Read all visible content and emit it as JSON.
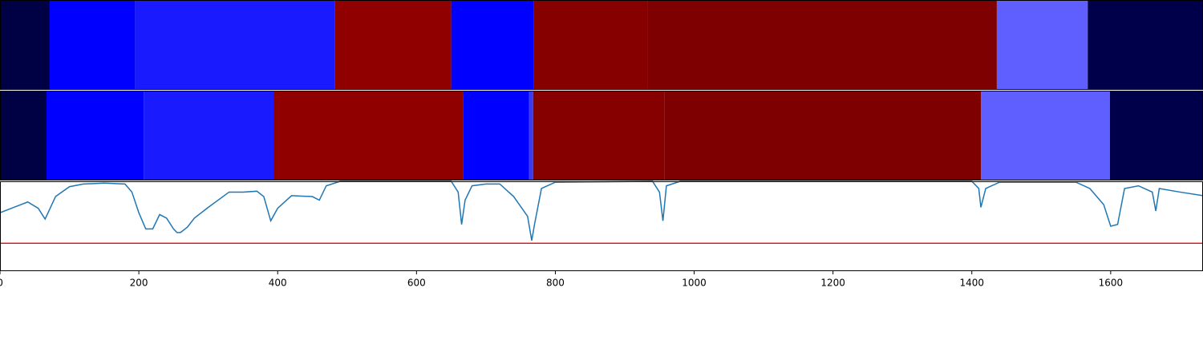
{
  "chart_data": [
    {
      "type": "segments",
      "xlim": [
        0,
        1733
      ],
      "segments": [
        {
          "start": 0,
          "end": 71.6,
          "color": "#000045"
        },
        {
          "start": 71.6,
          "end": 195,
          "color": "#0000ff"
        },
        {
          "start": 195,
          "end": 482,
          "color": "#1a1aff"
        },
        {
          "start": 482,
          "end": 650,
          "color": "#910000"
        },
        {
          "start": 650,
          "end": 769,
          "color": "#0000ff"
        },
        {
          "start": 769,
          "end": 933,
          "color": "#870000"
        },
        {
          "start": 933,
          "end": 1436,
          "color": "#7f0000"
        },
        {
          "start": 1436,
          "end": 1567,
          "color": "#5f5fff"
        },
        {
          "start": 1567,
          "end": 1733,
          "color": "#00004a"
        }
      ]
    },
    {
      "type": "segments",
      "xlim": [
        0,
        1733
      ],
      "segments": [
        {
          "start": 0,
          "end": 67,
          "color": "#000045"
        },
        {
          "start": 67,
          "end": 207,
          "color": "#0000ff"
        },
        {
          "start": 207,
          "end": 394,
          "color": "#1a1aff"
        },
        {
          "start": 394,
          "end": 667,
          "color": "#910000"
        },
        {
          "start": 667,
          "end": 762,
          "color": "#0000ff"
        },
        {
          "start": 762,
          "end": 768,
          "color": "#3a3aee"
        },
        {
          "start": 768,
          "end": 957,
          "color": "#870000"
        },
        {
          "start": 957,
          "end": 1413,
          "color": "#7f0000"
        },
        {
          "start": 1413,
          "end": 1599,
          "color": "#5f5fff"
        },
        {
          "start": 1599,
          "end": 1733,
          "color": "#00004a"
        }
      ]
    },
    {
      "type": "line",
      "xlim": [
        0,
        1733
      ],
      "ylim": [
        0,
        1
      ],
      "color": "#1f77b4",
      "threshold": 0.31,
      "threshold_color": "#e41a1c",
      "xticks": [
        0,
        200,
        400,
        600,
        800,
        1000,
        1200,
        1400,
        1600
      ],
      "x": [
        0,
        20,
        40,
        55,
        65,
        80,
        100,
        120,
        150,
        180,
        190,
        200,
        210,
        220,
        230,
        240,
        250,
        255,
        260,
        270,
        280,
        300,
        330,
        350,
        370,
        380,
        390,
        400,
        420,
        450,
        460,
        470,
        490,
        650,
        660,
        665,
        670,
        680,
        700,
        720,
        740,
        760,
        766,
        770,
        780,
        800,
        940,
        950,
        955,
        960,
        980,
        1400,
        1410,
        1413,
        1420,
        1440,
        1550,
        1570,
        1590,
        1600,
        1610,
        1620,
        1640,
        1660,
        1665,
        1670,
        1700,
        1733
      ],
      "values": [
        0.65,
        0.71,
        0.77,
        0.7,
        0.58,
        0.83,
        0.94,
        0.97,
        0.98,
        0.97,
        0.88,
        0.65,
        0.47,
        0.47,
        0.63,
        0.59,
        0.47,
        0.43,
        0.43,
        0.49,
        0.59,
        0.71,
        0.88,
        0.88,
        0.89,
        0.83,
        0.56,
        0.7,
        0.84,
        0.83,
        0.79,
        0.95,
        1.0,
        1.0,
        0.88,
        0.52,
        0.79,
        0.95,
        0.97,
        0.97,
        0.83,
        0.61,
        0.34,
        0.52,
        0.92,
        0.99,
        1.0,
        0.88,
        0.56,
        0.95,
        1.0,
        1.0,
        0.92,
        0.71,
        0.92,
        0.99,
        0.99,
        0.92,
        0.74,
        0.5,
        0.52,
        0.92,
        0.95,
        0.88,
        0.67,
        0.92,
        0.88,
        0.84
      ]
    }
  ]
}
